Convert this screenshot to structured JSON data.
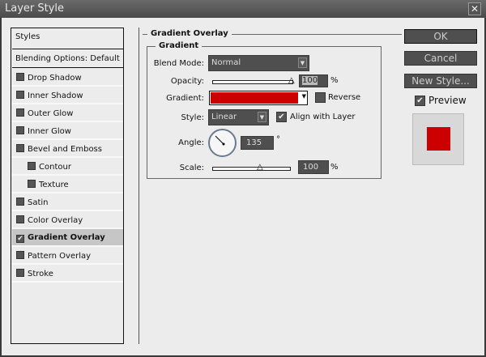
{
  "window": {
    "title": "Layer Style",
    "close_icon": "close-icon"
  },
  "styles_panel": {
    "header": "Styles",
    "blending": "Blending Options: Default",
    "items": [
      {
        "label": "Drop Shadow",
        "checked": false,
        "indent": false
      },
      {
        "label": "Inner Shadow",
        "checked": false,
        "indent": false
      },
      {
        "label": "Outer Glow",
        "checked": false,
        "indent": false
      },
      {
        "label": "Inner Glow",
        "checked": false,
        "indent": false
      },
      {
        "label": "Bevel and Emboss",
        "checked": false,
        "indent": false
      },
      {
        "label": "Contour",
        "checked": false,
        "indent": true
      },
      {
        "label": "Texture",
        "checked": false,
        "indent": true
      },
      {
        "label": "Satin",
        "checked": false,
        "indent": false
      },
      {
        "label": "Color Overlay",
        "checked": false,
        "indent": false
      },
      {
        "label": "Gradient Overlay",
        "checked": true,
        "indent": false,
        "selected": true
      },
      {
        "label": "Pattern Overlay",
        "checked": false,
        "indent": false
      },
      {
        "label": "Stroke",
        "checked": false,
        "indent": false
      }
    ]
  },
  "gradient_overlay": {
    "title": "Gradient Overlay",
    "group": "Gradient",
    "blend_mode_label": "Blend Mode:",
    "blend_mode": "Normal",
    "opacity_label": "Opacity:",
    "opacity": "100",
    "opacity_unit": "%",
    "gradient_label": "Gradient:",
    "gradient_color": "#cc0000",
    "reverse_label": "Reverse",
    "reverse": false,
    "style_label": "Style:",
    "style": "Linear",
    "align_label": "Align with Layer",
    "align": true,
    "angle_label": "Angle:",
    "angle": "135",
    "angle_unit": "°",
    "scale_label": "Scale:",
    "scale": "100",
    "scale_unit": "%"
  },
  "buttons": {
    "ok": "OK",
    "cancel": "Cancel",
    "new_style": "New Style..."
  },
  "preview": {
    "label": "Preview",
    "checked": true,
    "swatch_color": "#cc0000"
  }
}
